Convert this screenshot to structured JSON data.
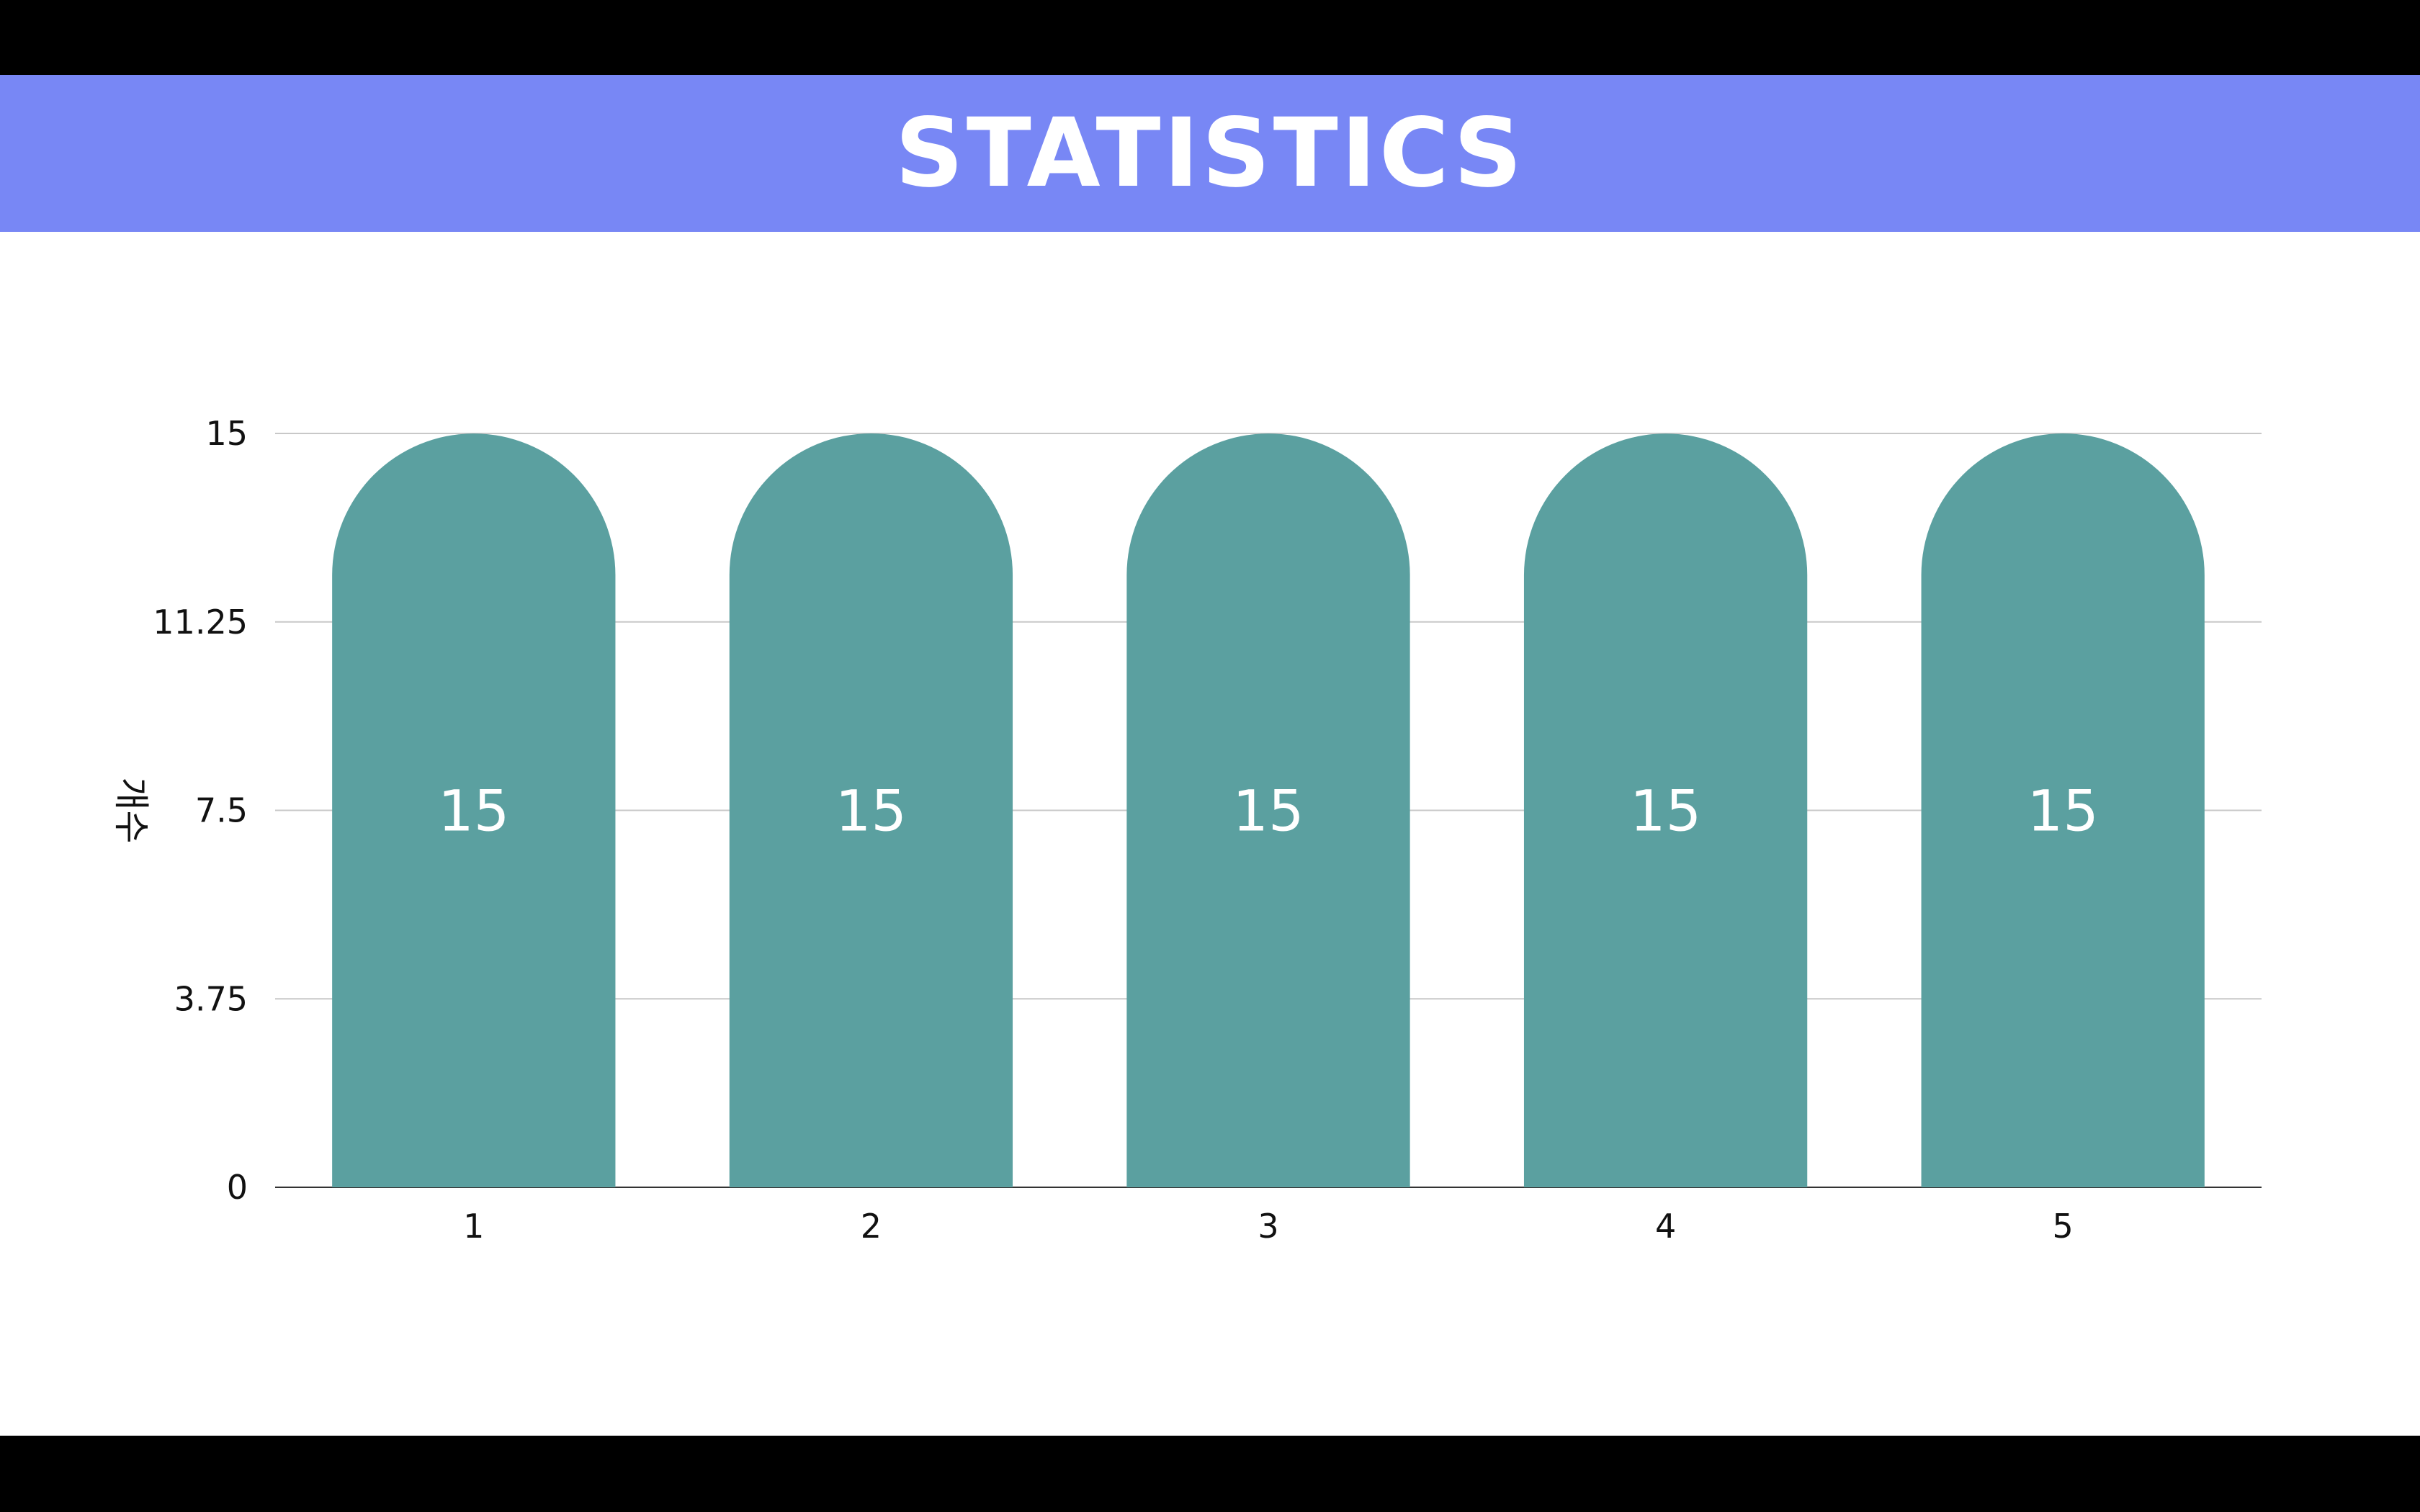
{
  "header": {
    "title": "STATISTICS"
  },
  "colors": {
    "title_bar": "#7887f5",
    "bar": "#5ba0a0",
    "gridline": "#c8c8c8",
    "axis": "#333333"
  },
  "chart_data": {
    "type": "bar",
    "categories": [
      "1",
      "2",
      "3",
      "4",
      "5"
    ],
    "values": [
      15,
      15,
      15,
      15,
      15
    ],
    "data_labels": [
      "15",
      "15",
      "15",
      "15",
      "15"
    ],
    "title": "",
    "xlabel": "",
    "ylabel": "개수",
    "ylim": [
      0,
      15
    ],
    "yticks": [
      0,
      3.75,
      7.5,
      11.25,
      15
    ],
    "ytick_labels": [
      "0",
      "3.75",
      "7.5",
      "11.25",
      "15"
    ],
    "grid": true,
    "legend": "none",
    "bar_shape": "rounded-top"
  }
}
